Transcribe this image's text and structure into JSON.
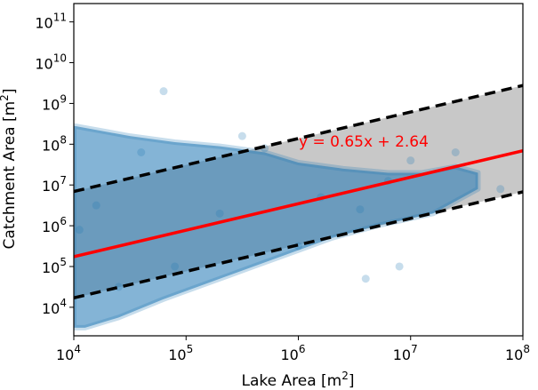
{
  "chart_data": {
    "type": "scatter",
    "title": "",
    "xlabel": "Lake Area [m",
    "xlabel_sup": "2",
    "xlabel_end": "]",
    "ylabel": "Catchment Area [m",
    "ylabel_sup": "2",
    "ylabel_end": "]",
    "xscale": "log",
    "yscale": "log",
    "xlim_log10": [
      4,
      8
    ],
    "ylim_log10": [
      3.3,
      11.45
    ],
    "x_ticks_log10": [
      4,
      5,
      6,
      7,
      8
    ],
    "y_ticks_log10": [
      4,
      5,
      6,
      7,
      8,
      9,
      10,
      11
    ],
    "tick_base": "10",
    "grid": false,
    "scatter": {
      "color": "#1f77b4",
      "alpha": 0.15,
      "description_points_log10": [
        [
          4.05,
          5.9
        ],
        [
          4.2,
          6.5
        ],
        [
          4.4,
          4.5
        ],
        [
          4.6,
          7.8
        ],
        [
          4.9,
          5.0
        ],
        [
          5.3,
          6.3
        ],
        [
          5.7,
          7.9
        ],
        [
          6.2,
          6.7
        ],
        [
          6.8,
          7.1
        ],
        [
          7.0,
          7.6
        ],
        [
          7.4,
          7.8
        ],
        [
          7.8,
          6.9
        ],
        [
          4.8,
          9.3
        ],
        [
          6.55,
          6.4
        ],
        [
          6.6,
          4.7
        ],
        [
          6.9,
          5.0
        ],
        [
          5.5,
          8.2
        ],
        [
          6.0,
          5.5
        ]
      ],
      "cloud_outline_log10": [
        [
          4.0,
          8.45
        ],
        [
          4.2,
          8.35
        ],
        [
          4.5,
          8.2
        ],
        [
          4.9,
          8.05
        ],
        [
          5.3,
          7.95
        ],
        [
          5.7,
          7.8
        ],
        [
          6.0,
          7.55
        ],
        [
          6.4,
          7.4
        ],
        [
          6.8,
          7.3
        ],
        [
          7.1,
          7.3
        ],
        [
          7.4,
          7.45
        ],
        [
          7.6,
          7.3
        ],
        [
          7.6,
          6.9
        ],
        [
          7.2,
          6.3
        ],
        [
          6.7,
          6.0
        ],
        [
          6.3,
          5.7
        ],
        [
          6.0,
          5.4
        ],
        [
          5.6,
          5.0
        ],
        [
          5.2,
          4.6
        ],
        [
          4.8,
          4.2
        ],
        [
          4.4,
          3.75
        ],
        [
          4.1,
          3.5
        ],
        [
          4.0,
          3.5
        ]
      ]
    },
    "fit_line": {
      "slope": 0.65,
      "intercept": 2.64,
      "color": "#ff0000",
      "label": "y = 0.65x + 2.64"
    },
    "band": {
      "upper_intercept": 4.24,
      "lower_intercept": 1.63,
      "fill": "#c8c8c8",
      "line_color": "#000000",
      "line_style": "dashed"
    }
  }
}
